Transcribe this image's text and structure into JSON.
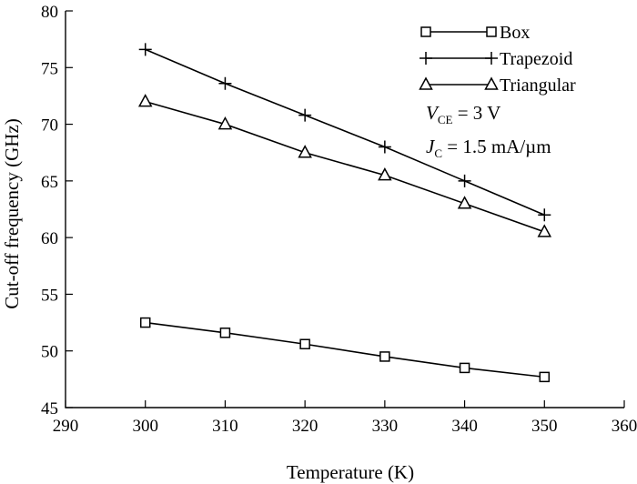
{
  "chart_data": {
    "type": "line",
    "xlabel": "Temperature (K)",
    "ylabel": "Cut-off frequency (GHz)",
    "xlim": [
      290,
      360
    ],
    "ylim": [
      45,
      80
    ],
    "xticks": [
      290,
      300,
      310,
      320,
      330,
      340,
      350,
      360
    ],
    "yticks": [
      45,
      50,
      55,
      60,
      65,
      70,
      75,
      80
    ],
    "grid": false,
    "legend_position": "top-right",
    "x": [
      300,
      310,
      320,
      330,
      340,
      350
    ],
    "series": [
      {
        "name": "Box",
        "marker": "square",
        "values": [
          52.5,
          51.6,
          50.6,
          49.5,
          48.5,
          47.7
        ]
      },
      {
        "name": "Trapezoid",
        "marker": "plus",
        "values": [
          76.6,
          73.6,
          70.8,
          68.0,
          65.0,
          62.0
        ]
      },
      {
        "name": "Triangular",
        "marker": "triangle",
        "values": [
          72.0,
          70.0,
          67.5,
          65.5,
          63.0,
          60.5
        ]
      }
    ],
    "annotations": {
      "vce": {
        "var": "V",
        "sub": "CE",
        "rest": " = 3 V"
      },
      "jc": {
        "var": "J",
        "sub": "C",
        "rest": " = 1.5 mA/µm"
      }
    }
  }
}
